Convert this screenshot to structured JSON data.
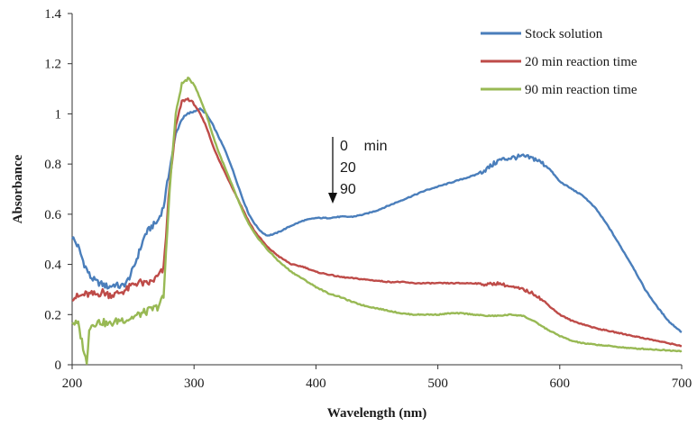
{
  "chart_data": {
    "type": "line",
    "title": "",
    "xlabel": "Wavelength (nm)",
    "ylabel": "Absorbance",
    "xlim": [
      200,
      700
    ],
    "ylim": [
      0,
      1.4
    ],
    "xticks": [
      200,
      300,
      400,
      500,
      600,
      700
    ],
    "yticks": [
      0,
      0.2,
      0.4,
      0.6,
      0.8,
      1,
      1.2,
      1.4
    ],
    "xtick_labels": [
      "200",
      "300",
      "400",
      "500",
      "600",
      "700"
    ],
    "ytick_labels": [
      "0",
      "0.2",
      "0.4",
      "0.6",
      "0.8",
      "1",
      "1.2",
      "1.4"
    ],
    "grid": false,
    "legend_position": "top-right",
    "annotation": {
      "lines": [
        "0    min",
        "20",
        "90"
      ],
      "arrow": "down"
    },
    "series": [
      {
        "name": "Stock solution",
        "color": "#4a7ebb",
        "points": [
          [
            200,
            0.51
          ],
          [
            205,
            0.47
          ],
          [
            210,
            0.4
          ],
          [
            215,
            0.35
          ],
          [
            220,
            0.33
          ],
          [
            225,
            0.32
          ],
          [
            230,
            0.31
          ],
          [
            235,
            0.32
          ],
          [
            240,
            0.31
          ],
          [
            245,
            0.33
          ],
          [
            250,
            0.38
          ],
          [
            255,
            0.45
          ],
          [
            260,
            0.52
          ],
          [
            265,
            0.55
          ],
          [
            270,
            0.57
          ],
          [
            275,
            0.63
          ],
          [
            280,
            0.78
          ],
          [
            285,
            0.92
          ],
          [
            290,
            0.98
          ],
          [
            295,
            1.0
          ],
          [
            300,
            1.01
          ],
          [
            305,
            1.02
          ],
          [
            310,
            1.0
          ],
          [
            315,
            0.96
          ],
          [
            320,
            0.91
          ],
          [
            325,
            0.86
          ],
          [
            330,
            0.8
          ],
          [
            335,
            0.73
          ],
          [
            340,
            0.66
          ],
          [
            345,
            0.6
          ],
          [
            350,
            0.56
          ],
          [
            355,
            0.53
          ],
          [
            360,
            0.515
          ],
          [
            365,
            0.52
          ],
          [
            370,
            0.53
          ],
          [
            380,
            0.555
          ],
          [
            390,
            0.575
          ],
          [
            400,
            0.585
          ],
          [
            410,
            0.585
          ],
          [
            420,
            0.59
          ],
          [
            430,
            0.59
          ],
          [
            440,
            0.6
          ],
          [
            450,
            0.615
          ],
          [
            460,
            0.635
          ],
          [
            470,
            0.655
          ],
          [
            480,
            0.675
          ],
          [
            490,
            0.695
          ],
          [
            500,
            0.71
          ],
          [
            510,
            0.725
          ],
          [
            520,
            0.74
          ],
          [
            530,
            0.755
          ],
          [
            540,
            0.78
          ],
          [
            550,
            0.815
          ],
          [
            560,
            0.825
          ],
          [
            570,
            0.83
          ],
          [
            580,
            0.82
          ],
          [
            590,
            0.79
          ],
          [
            600,
            0.73
          ],
          [
            610,
            0.7
          ],
          [
            620,
            0.67
          ],
          [
            630,
            0.62
          ],
          [
            640,
            0.55
          ],
          [
            650,
            0.47
          ],
          [
            660,
            0.39
          ],
          [
            670,
            0.3
          ],
          [
            680,
            0.23
          ],
          [
            690,
            0.17
          ],
          [
            700,
            0.13
          ]
        ]
      },
      {
        "name": "20 min reaction time",
        "color": "#be4b48",
        "points": [
          [
            200,
            0.27
          ],
          [
            205,
            0.27
          ],
          [
            210,
            0.28
          ],
          [
            215,
            0.28
          ],
          [
            220,
            0.28
          ],
          [
            225,
            0.29
          ],
          [
            230,
            0.28
          ],
          [
            235,
            0.28
          ],
          [
            240,
            0.29
          ],
          [
            245,
            0.3
          ],
          [
            250,
            0.32
          ],
          [
            255,
            0.33
          ],
          [
            260,
            0.32
          ],
          [
            265,
            0.33
          ],
          [
            270,
            0.35
          ],
          [
            275,
            0.38
          ],
          [
            280,
            0.72
          ],
          [
            285,
            0.95
          ],
          [
            290,
            1.05
          ],
          [
            295,
            1.06
          ],
          [
            300,
            1.04
          ],
          [
            305,
            1.0
          ],
          [
            310,
            0.95
          ],
          [
            315,
            0.88
          ],
          [
            320,
            0.82
          ],
          [
            325,
            0.77
          ],
          [
            330,
            0.72
          ],
          [
            335,
            0.67
          ],
          [
            340,
            0.62
          ],
          [
            345,
            0.57
          ],
          [
            350,
            0.53
          ],
          [
            355,
            0.5
          ],
          [
            360,
            0.47
          ],
          [
            370,
            0.43
          ],
          [
            380,
            0.4
          ],
          [
            390,
            0.39
          ],
          [
            400,
            0.37
          ],
          [
            410,
            0.36
          ],
          [
            420,
            0.35
          ],
          [
            430,
            0.345
          ],
          [
            440,
            0.34
          ],
          [
            450,
            0.335
          ],
          [
            460,
            0.33
          ],
          [
            470,
            0.33
          ],
          [
            480,
            0.325
          ],
          [
            490,
            0.325
          ],
          [
            500,
            0.325
          ],
          [
            510,
            0.325
          ],
          [
            520,
            0.325
          ],
          [
            530,
            0.325
          ],
          [
            540,
            0.32
          ],
          [
            550,
            0.325
          ],
          [
            560,
            0.31
          ],
          [
            570,
            0.3
          ],
          [
            580,
            0.28
          ],
          [
            590,
            0.24
          ],
          [
            600,
            0.2
          ],
          [
            610,
            0.175
          ],
          [
            620,
            0.16
          ],
          [
            630,
            0.145
          ],
          [
            640,
            0.135
          ],
          [
            650,
            0.125
          ],
          [
            660,
            0.115
          ],
          [
            670,
            0.105
          ],
          [
            680,
            0.095
          ],
          [
            690,
            0.085
          ],
          [
            700,
            0.075
          ]
        ]
      },
      {
        "name": "90 min reaction time",
        "color": "#98b954",
        "points": [
          [
            200,
            0.17
          ],
          [
            205,
            0.16
          ],
          [
            210,
            0.05
          ],
          [
            212,
            0.0
          ],
          [
            214,
            0.15
          ],
          [
            220,
            0.17
          ],
          [
            225,
            0.17
          ],
          [
            230,
            0.16
          ],
          [
            235,
            0.17
          ],
          [
            240,
            0.18
          ],
          [
            245,
            0.18
          ],
          [
            250,
            0.19
          ],
          [
            255,
            0.2
          ],
          [
            260,
            0.21
          ],
          [
            265,
            0.22
          ],
          [
            270,
            0.23
          ],
          [
            275,
            0.27
          ],
          [
            280,
            0.7
          ],
          [
            285,
            1.0
          ],
          [
            290,
            1.12
          ],
          [
            295,
            1.14
          ],
          [
            300,
            1.12
          ],
          [
            305,
            1.06
          ],
          [
            310,
            1.0
          ],
          [
            315,
            0.92
          ],
          [
            320,
            0.85
          ],
          [
            325,
            0.79
          ],
          [
            330,
            0.73
          ],
          [
            335,
            0.67
          ],
          [
            340,
            0.61
          ],
          [
            345,
            0.56
          ],
          [
            350,
            0.52
          ],
          [
            355,
            0.49
          ],
          [
            360,
            0.46
          ],
          [
            370,
            0.41
          ],
          [
            380,
            0.37
          ],
          [
            390,
            0.34
          ],
          [
            400,
            0.31
          ],
          [
            410,
            0.285
          ],
          [
            420,
            0.27
          ],
          [
            430,
            0.25
          ],
          [
            440,
            0.235
          ],
          [
            450,
            0.225
          ],
          [
            460,
            0.215
          ],
          [
            470,
            0.205
          ],
          [
            480,
            0.2
          ],
          [
            490,
            0.2
          ],
          [
            500,
            0.2
          ],
          [
            510,
            0.205
          ],
          [
            520,
            0.205
          ],
          [
            530,
            0.2
          ],
          [
            540,
            0.195
          ],
          [
            550,
            0.195
          ],
          [
            560,
            0.2
          ],
          [
            570,
            0.195
          ],
          [
            580,
            0.17
          ],
          [
            590,
            0.14
          ],
          [
            600,
            0.115
          ],
          [
            610,
            0.095
          ],
          [
            620,
            0.085
          ],
          [
            630,
            0.08
          ],
          [
            640,
            0.075
          ],
          [
            650,
            0.07
          ],
          [
            660,
            0.065
          ],
          [
            670,
            0.063
          ],
          [
            680,
            0.06
          ],
          [
            690,
            0.057
          ],
          [
            700,
            0.055
          ]
        ]
      }
    ]
  }
}
